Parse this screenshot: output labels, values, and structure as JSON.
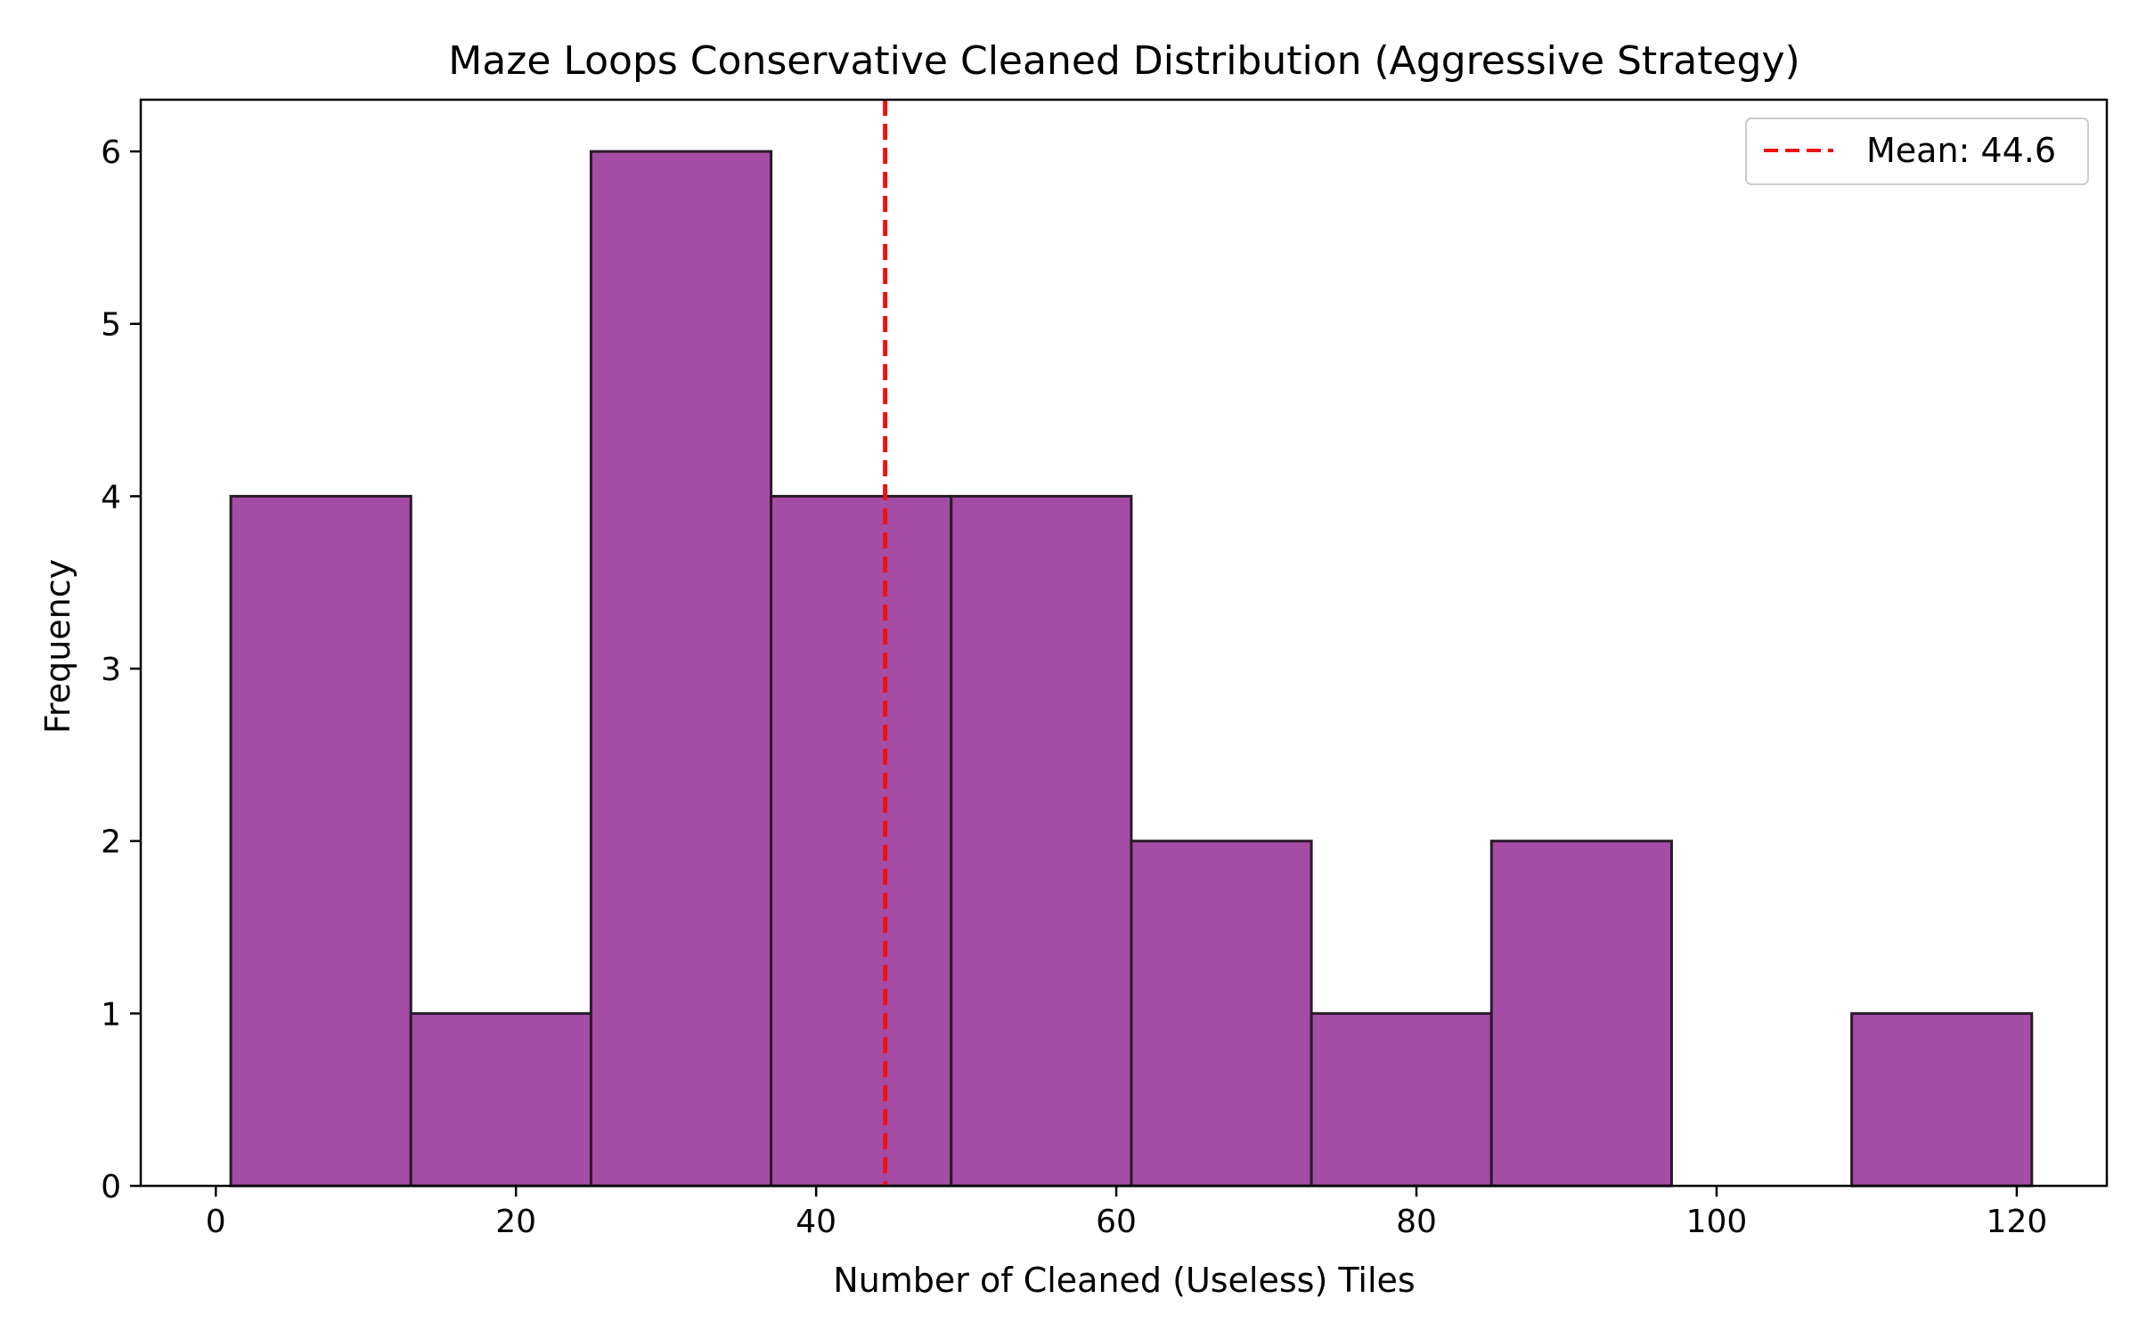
{
  "chart_data": {
    "type": "bar",
    "subtype": "histogram",
    "title": "Maze Loops Conservative Cleaned Distribution (Aggressive Strategy)",
    "xlabel": "Number of Cleaned (Useless) Tiles",
    "ylabel": "Frequency",
    "xlim": [
      -5,
      126
    ],
    "ylim": [
      0,
      6.3
    ],
    "xticks": [
      0,
      20,
      40,
      60,
      80,
      100,
      120
    ],
    "yticks": [
      0,
      1,
      2,
      3,
      4,
      5,
      6
    ],
    "bins": [
      {
        "start": 1,
        "end": 13,
        "count": 4
      },
      {
        "start": 13,
        "end": 25,
        "count": 1
      },
      {
        "start": 25,
        "end": 37,
        "count": 6
      },
      {
        "start": 37,
        "end": 49,
        "count": 4
      },
      {
        "start": 49,
        "end": 61,
        "count": 4
      },
      {
        "start": 61,
        "end": 73,
        "count": 2
      },
      {
        "start": 73,
        "end": 85,
        "count": 1
      },
      {
        "start": 85,
        "end": 97,
        "count": 2
      },
      {
        "start": 97,
        "end": 109,
        "count": 0
      },
      {
        "start": 109,
        "end": 121,
        "count": 1
      }
    ],
    "bar_color": "#a54ca5",
    "bar_edge_color": "#2a1a2a",
    "mean_line": {
      "value": 44.6,
      "label": "Mean: 44.6",
      "color": "#ee1111",
      "style": "dashed"
    },
    "legend": {
      "position": "top-right",
      "entries": [
        "Mean: 44.6"
      ]
    },
    "grid": false
  }
}
